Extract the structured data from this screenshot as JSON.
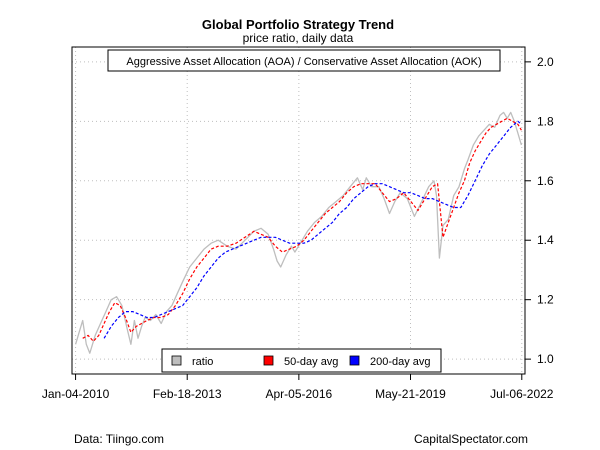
{
  "colors": {
    "ratio": "#bebebe",
    "ma50": "#ff0000",
    "ma200": "#0000ff",
    "grid": "#bfbfbf",
    "frame": "#000000"
  },
  "footer": {
    "source": "Data: Tiingo.com",
    "site": "CapitalSpectator.com"
  },
  "chart_data": {
    "type": "line",
    "title": "Global Portfolio Strategy Trend",
    "subtitle": "price ratio, daily data",
    "top_legend": "Aggressive Asset Allocation (AOA) / Conservative Asset Allocation (AOK)",
    "x_tick_labels": [
      "Jan-04-2010",
      "Feb-18-2013",
      "Apr-05-2016",
      "May-21-2019",
      "Jul-06-2022"
    ],
    "x_tick_positions": [
      2010.0,
      2013.13,
      2016.26,
      2019.39,
      2022.51
    ],
    "xlim": [
      2009.9,
      2022.6
    ],
    "ylim": [
      0.95,
      2.05
    ],
    "y_ticks": [
      1.0,
      1.2,
      1.4,
      1.6,
      1.8,
      2.0
    ],
    "y_tick_labels": [
      "1.0",
      "1.2",
      "1.4",
      "1.6",
      "1.8",
      "2.0"
    ],
    "grid": true,
    "legend_position": "bottom-center",
    "series": [
      {
        "name": "ratio",
        "color_key": "ratio",
        "style": "solid",
        "x": [
          2010.0,
          2010.1,
          2010.2,
          2010.3,
          2010.4,
          2010.55,
          2010.7,
          2010.85,
          2011.0,
          2011.15,
          2011.3,
          2011.45,
          2011.55,
          2011.65,
          2011.75,
          2011.85,
          2011.95,
          2012.1,
          2012.25,
          2012.4,
          2012.55,
          2012.7,
          2012.85,
          2013.0,
          2013.2,
          2013.4,
          2013.6,
          2013.8,
          2014.0,
          2014.25,
          2014.5,
          2014.75,
          2015.0,
          2015.2,
          2015.4,
          2015.55,
          2015.65,
          2015.75,
          2015.9,
          2016.05,
          2016.15,
          2016.3,
          2016.5,
          2016.7,
          2016.9,
          2017.1,
          2017.3,
          2017.5,
          2017.7,
          2017.9,
          2018.05,
          2018.15,
          2018.3,
          2018.5,
          2018.65,
          2018.8,
          2018.95,
          2019.1,
          2019.3,
          2019.5,
          2019.7,
          2019.9,
          2020.05,
          2020.12,
          2020.2,
          2020.3,
          2020.45,
          2020.6,
          2020.75,
          2020.9,
          2021.0,
          2021.15,
          2021.3,
          2021.45,
          2021.6,
          2021.75,
          2021.9,
          2022.0,
          2022.1,
          2022.2,
          2022.3,
          2022.4,
          2022.5
        ],
        "values": [
          1.05,
          1.09,
          1.13,
          1.05,
          1.02,
          1.08,
          1.12,
          1.16,
          1.2,
          1.21,
          1.18,
          1.1,
          1.05,
          1.13,
          1.07,
          1.11,
          1.14,
          1.13,
          1.15,
          1.12,
          1.16,
          1.18,
          1.22,
          1.26,
          1.31,
          1.34,
          1.37,
          1.39,
          1.4,
          1.38,
          1.37,
          1.4,
          1.43,
          1.44,
          1.42,
          1.37,
          1.33,
          1.31,
          1.35,
          1.38,
          1.36,
          1.39,
          1.43,
          1.46,
          1.48,
          1.51,
          1.53,
          1.55,
          1.58,
          1.61,
          1.57,
          1.61,
          1.58,
          1.58,
          1.54,
          1.49,
          1.53,
          1.56,
          1.54,
          1.48,
          1.53,
          1.58,
          1.6,
          1.55,
          1.34,
          1.45,
          1.47,
          1.55,
          1.58,
          1.64,
          1.67,
          1.72,
          1.75,
          1.77,
          1.79,
          1.78,
          1.82,
          1.83,
          1.81,
          1.83,
          1.8,
          1.76,
          1.72
        ]
      },
      {
        "name": "50-day avg",
        "color_key": "ma50",
        "style": "dashed",
        "x": [
          2010.2,
          2010.35,
          2010.5,
          2010.65,
          2010.8,
          2010.95,
          2011.1,
          2011.25,
          2011.4,
          2011.55,
          2011.7,
          2011.85,
          2012.0,
          2012.2,
          2012.4,
          2012.6,
          2012.8,
          2013.0,
          2013.2,
          2013.4,
          2013.6,
          2013.8,
          2014.0,
          2014.25,
          2014.5,
          2014.75,
          2015.0,
          2015.2,
          2015.4,
          2015.6,
          2015.8,
          2016.0,
          2016.2,
          2016.4,
          2016.6,
          2016.8,
          2017.0,
          2017.2,
          2017.4,
          2017.6,
          2017.8,
          2018.0,
          2018.2,
          2018.4,
          2018.6,
          2018.8,
          2019.0,
          2019.2,
          2019.4,
          2019.6,
          2019.8,
          2020.0,
          2020.15,
          2020.3,
          2020.45,
          2020.6,
          2020.75,
          2020.9,
          2021.05,
          2021.2,
          2021.35,
          2021.5,
          2021.65,
          2021.8,
          2021.95,
          2022.1,
          2022.25,
          2022.4,
          2022.5
        ],
        "values": [
          1.07,
          1.08,
          1.06,
          1.08,
          1.12,
          1.16,
          1.19,
          1.18,
          1.14,
          1.09,
          1.11,
          1.12,
          1.13,
          1.14,
          1.14,
          1.15,
          1.18,
          1.22,
          1.27,
          1.31,
          1.34,
          1.37,
          1.38,
          1.38,
          1.39,
          1.41,
          1.43,
          1.42,
          1.41,
          1.38,
          1.36,
          1.37,
          1.38,
          1.4,
          1.43,
          1.46,
          1.49,
          1.51,
          1.53,
          1.56,
          1.58,
          1.59,
          1.59,
          1.59,
          1.56,
          1.53,
          1.54,
          1.56,
          1.53,
          1.5,
          1.54,
          1.58,
          1.59,
          1.41,
          1.46,
          1.51,
          1.56,
          1.6,
          1.66,
          1.7,
          1.73,
          1.76,
          1.78,
          1.79,
          1.8,
          1.81,
          1.8,
          1.79,
          1.77
        ]
      },
      {
        "name": "200-day avg",
        "color_key": "ma200",
        "style": "dashed",
        "x": [
          2010.8,
          2011.0,
          2011.2,
          2011.4,
          2011.6,
          2011.8,
          2012.0,
          2012.2,
          2012.4,
          2012.6,
          2012.8,
          2013.0,
          2013.2,
          2013.4,
          2013.6,
          2013.8,
          2014.0,
          2014.2,
          2014.4,
          2014.6,
          2014.8,
          2015.0,
          2015.2,
          2015.4,
          2015.6,
          2015.8,
          2016.0,
          2016.2,
          2016.4,
          2016.6,
          2016.8,
          2017.0,
          2017.2,
          2017.4,
          2017.6,
          2017.8,
          2018.0,
          2018.2,
          2018.4,
          2018.6,
          2018.8,
          2019.0,
          2019.2,
          2019.4,
          2019.6,
          2019.8,
          2020.0,
          2020.2,
          2020.4,
          2020.6,
          2020.8,
          2021.0,
          2021.2,
          2021.4,
          2021.6,
          2021.8,
          2022.0,
          2022.2,
          2022.4,
          2022.5
        ],
        "values": [
          1.07,
          1.11,
          1.14,
          1.16,
          1.16,
          1.15,
          1.14,
          1.14,
          1.15,
          1.16,
          1.17,
          1.18,
          1.21,
          1.24,
          1.28,
          1.31,
          1.34,
          1.36,
          1.37,
          1.38,
          1.39,
          1.4,
          1.41,
          1.41,
          1.41,
          1.4,
          1.39,
          1.39,
          1.39,
          1.4,
          1.42,
          1.44,
          1.46,
          1.49,
          1.51,
          1.54,
          1.56,
          1.58,
          1.59,
          1.59,
          1.58,
          1.57,
          1.56,
          1.56,
          1.55,
          1.54,
          1.54,
          1.53,
          1.52,
          1.51,
          1.51,
          1.55,
          1.6,
          1.65,
          1.69,
          1.72,
          1.75,
          1.78,
          1.8,
          1.79
        ]
      }
    ]
  }
}
